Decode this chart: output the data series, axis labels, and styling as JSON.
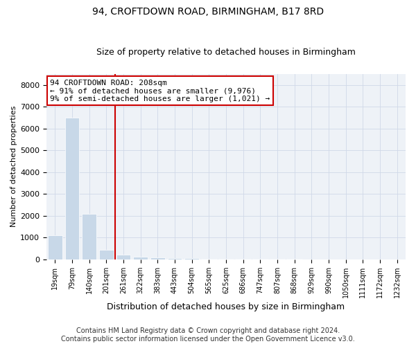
{
  "title1": "94, CROFTDOWN ROAD, BIRMINGHAM, B17 8RD",
  "title2": "Size of property relative to detached houses in Birmingham",
  "xlabel": "Distribution of detached houses by size in Birmingham",
  "ylabel": "Number of detached properties",
  "categories": [
    "19sqm",
    "79sqm",
    "140sqm",
    "201sqm",
    "261sqm",
    "322sqm",
    "383sqm",
    "443sqm",
    "504sqm",
    "565sqm",
    "625sqm",
    "686sqm",
    "747sqm",
    "807sqm",
    "868sqm",
    "929sqm",
    "990sqm",
    "1050sqm",
    "1111sqm",
    "1172sqm",
    "1232sqm"
  ],
  "values": [
    1100,
    6500,
    2100,
    430,
    230,
    130,
    90,
    60,
    50,
    40,
    30,
    25,
    20,
    15,
    12,
    10,
    8,
    6,
    5,
    4,
    3
  ],
  "bar_color": "#c8d8e8",
  "vline_color": "#cc0000",
  "vline_x_index": 3,
  "annotation_text_line1": "94 CROFTDOWN ROAD: 208sqm",
  "annotation_text_line2": "← 91% of detached houses are smaller (9,976)",
  "annotation_text_line3": "9% of semi-detached houses are larger (1,021) →",
  "annotation_box_color": "#ffffff",
  "annotation_border_color": "#cc0000",
  "footer1": "Contains HM Land Registry data © Crown copyright and database right 2024.",
  "footer2": "Contains public sector information licensed under the Open Government Licence v3.0.",
  "ylim": [
    0,
    8500
  ],
  "yticks": [
    0,
    1000,
    2000,
    3000,
    4000,
    5000,
    6000,
    7000,
    8000
  ],
  "title1_fontsize": 10,
  "title2_fontsize": 9,
  "xlabel_fontsize": 9,
  "ylabel_fontsize": 8,
  "tick_fontsize": 8,
  "annot_fontsize": 8,
  "footer_fontsize": 7,
  "grid_color": "#d0d8e8",
  "background_color": "#eef2f7"
}
